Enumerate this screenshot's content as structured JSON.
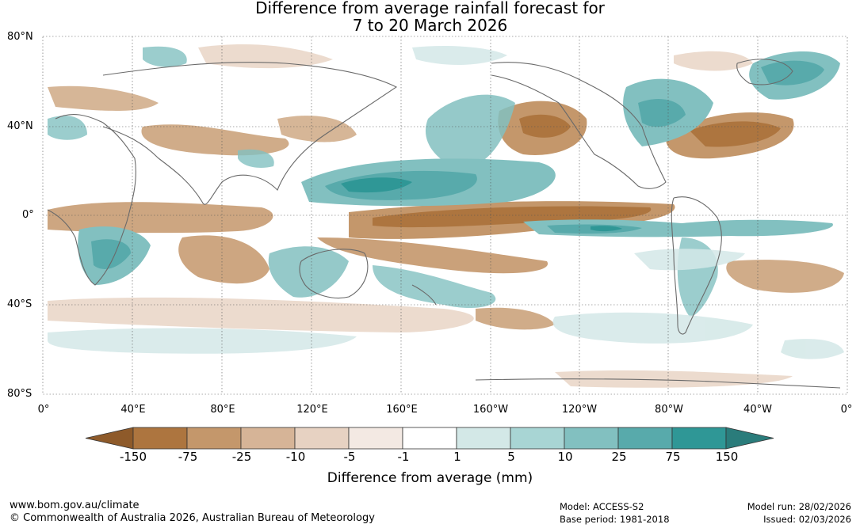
{
  "title": {
    "line1": "Difference from average rainfall forecast for",
    "line2": "7 to 20 March 2026"
  },
  "map": {
    "lat_labels": [
      "80°N",
      "40°N",
      "0°",
      "40°S",
      "80°S"
    ],
    "lon_labels": [
      "0°",
      "40°E",
      "80°E",
      "120°E",
      "160°E",
      "160°W",
      "120°W",
      "80°W",
      "40°W",
      "0°"
    ]
  },
  "legend": {
    "title": "Difference from average (mm)",
    "tick_labels": [
      "-150",
      "-75",
      "-25",
      "-10",
      "-5",
      "-1",
      "1",
      "5",
      "10",
      "25",
      "75",
      "150"
    ],
    "colors": [
      "#8e5a2a",
      "#ad753f",
      "#c4976b",
      "#d6b497",
      "#e7d2c2",
      "#f3e9e3",
      "#ffffff",
      "#d3e8e7",
      "#a8d5d4",
      "#82c0c0",
      "#58aaab",
      "#2f9796",
      "#2a7c7b"
    ]
  },
  "footer": {
    "website": "www.bom.gov.au/climate",
    "copyright": "© Commonwealth of Australia 2026, Australian Bureau of Meteorology",
    "model": "Model: ACCESS-S2",
    "base_period": "Base period: 1981-2018",
    "model_run": "Model run: 28/02/2026",
    "issued": "Issued: 02/03/2026"
  }
}
